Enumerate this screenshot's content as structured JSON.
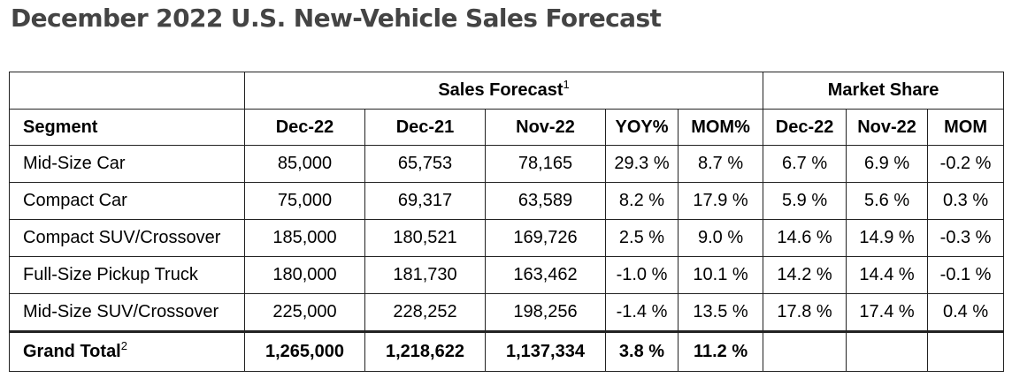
{
  "title": "December 2022 U.S. New-Vehicle Sales Forecast",
  "table": {
    "group_headers": {
      "sales_forecast": "Sales Forecast",
      "sales_forecast_note": "1",
      "market_share": "Market Share"
    },
    "columns": [
      "Segment",
      "Dec-22",
      "Dec-21",
      "Nov-22",
      "YOY%",
      "MOM%",
      "Dec-22",
      "Nov-22",
      "MOM"
    ],
    "rows": [
      [
        "Mid-Size Car",
        "85,000",
        "65,753",
        "78,165",
        "29.3 %",
        "8.7 %",
        "6.7 %",
        "6.9 %",
        "-0.2 %"
      ],
      [
        "Compact Car",
        "75,000",
        "69,317",
        "63,589",
        "8.2 %",
        "17.9 %",
        "5.9 %",
        "5.6 %",
        "0.3 %"
      ],
      [
        "Compact SUV/Crossover",
        "185,000",
        "180,521",
        "169,726",
        "2.5 %",
        "9.0 %",
        "14.6 %",
        "14.9 %",
        "-0.3 %"
      ],
      [
        "Full-Size Pickup Truck",
        "180,000",
        "181,730",
        "163,462",
        "-1.0 %",
        "10.1 %",
        "14.2 %",
        "14.4 %",
        "-0.1 %"
      ],
      [
        "Mid-Size SUV/Crossover",
        "225,000",
        "228,252",
        "198,256",
        "-1.4 %",
        "13.5 %",
        "17.8 %",
        "17.4 %",
        "0.4 %"
      ]
    ],
    "total": {
      "label": "Grand Total",
      "label_note": "2",
      "values": [
        "1,265,000",
        "1,218,622",
        "1,137,334",
        "3.8 %",
        "11.2 %",
        "",
        "",
        ""
      ]
    }
  }
}
